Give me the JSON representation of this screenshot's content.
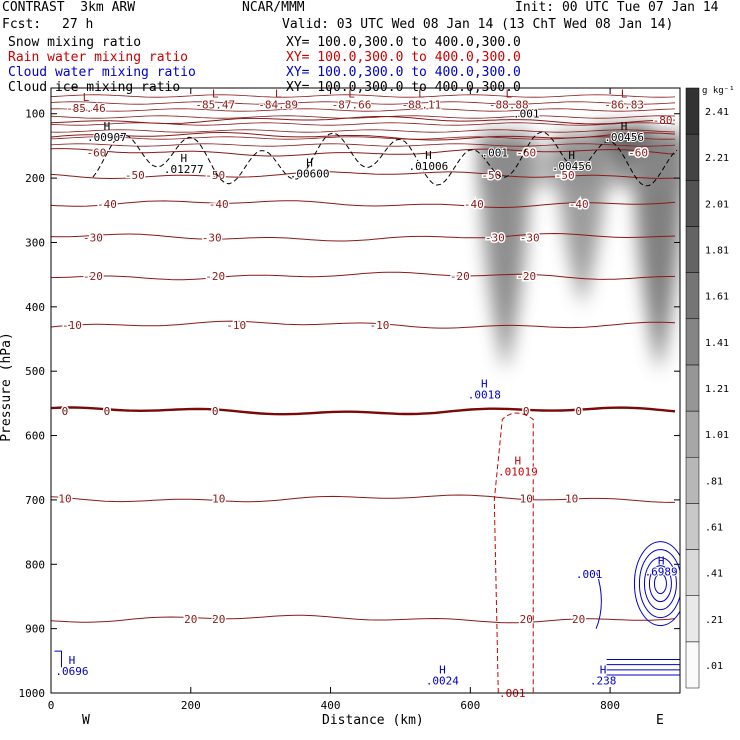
{
  "header": {
    "project": "CONTRAST  3km ARW",
    "org": "NCAR/MMM",
    "init": "Init: 00 UTC Tue 07 Jan 14",
    "fcst_label": "Fcst:",
    "fcst_value": "27 h",
    "valid": "Valid: 03 UTC Wed 08 Jan 14 (13 ChT Wed 08 Jan 14)",
    "xy": "XY= 100.0,300.0 to 400.0,300.0"
  },
  "fields": [
    {
      "label": "Snow mixing ratio",
      "color": "#000000"
    },
    {
      "label": "Rain water mixing ratio",
      "color": "#cc0000"
    },
    {
      "label": "Cloud water mixing ratio",
      "color": "#0000cc"
    },
    {
      "label": "Cloud ice mixing ratio",
      "color": "#000000"
    }
  ],
  "chart_data": {
    "type": "heatmap",
    "xlabel": "Distance (km)",
    "ylabel": "Pressure (hPa)",
    "xlim": [
      0,
      900
    ],
    "ylim": [
      1000,
      60
    ],
    "x_ticks": [
      0,
      200,
      400,
      600,
      800
    ],
    "y_ticks": [
      100,
      200,
      300,
      400,
      500,
      600,
      700,
      800,
      900,
      1000
    ],
    "x_end_labels": {
      "left": "W",
      "right": "E"
    },
    "colorbar": {
      "unit": "g kg⁻¹",
      "levels": [
        ".01",
        ".21",
        ".41",
        ".61",
        ".81",
        "1.01",
        "1.21",
        "1.41",
        "1.61",
        "1.81",
        "2.01",
        "2.21",
        "2.41"
      ],
      "level_values": [
        0.01,
        0.21,
        0.41,
        0.61,
        0.81,
        1.01,
        1.21,
        1.41,
        1.61,
        1.81,
        2.01,
        2.21,
        2.41
      ]
    },
    "snow_shading": [
      {
        "x": 650,
        "p_top": 130,
        "p_bottom": 500,
        "peak": 1.6
      },
      {
        "x": 760,
        "p_top": 130,
        "p_bottom": 400,
        "peak": 1.4
      },
      {
        "x": 870,
        "p_top": 130,
        "p_bottom": 500,
        "peak": 1.8
      },
      {
        "x": 820,
        "p_top": 120,
        "p_bottom": 210,
        "peak": 2.2
      }
    ],
    "temperature_contours": [
      {
        "value": -80,
        "p": 110,
        "color": "#8b1a1a",
        "labels": [
          {
            "text": "-80",
            "x": 875
          }
        ]
      },
      {
        "value": -70,
        "p": 135,
        "color": "#8b1a1a",
        "labels": []
      },
      {
        "value": -60,
        "p": 160,
        "color": "#8b1a1a",
        "labels": [
          {
            "text": "-60",
            "x": 65
          },
          {
            "text": "-60",
            "x": 680
          },
          {
            "text": "-60",
            "x": 840
          }
        ]
      },
      {
        "value": -50,
        "p": 195,
        "color": "#8b1a1a",
        "labels": [
          {
            "text": "-50",
            "x": 120
          },
          {
            "text": "-50",
            "x": 235
          },
          {
            "text": "-50",
            "x": 630
          },
          {
            "text": "-50",
            "x": 735
          }
        ]
      },
      {
        "value": -40,
        "p": 240,
        "color": "#8b1a1a",
        "labels": [
          {
            "text": "-40",
            "x": 80
          },
          {
            "text": "-40",
            "x": 240
          },
          {
            "text": "-40",
            "x": 605
          },
          {
            "text": "-40",
            "x": 755
          }
        ]
      },
      {
        "value": -30,
        "p": 292,
        "color": "#8b1a1a",
        "labels": [
          {
            "text": "-30",
            "x": 60
          },
          {
            "text": "-30",
            "x": 230
          },
          {
            "text": "-30",
            "x": 635
          },
          {
            "text": "-30",
            "x": 685
          }
        ]
      },
      {
        "value": -20,
        "p": 352,
        "color": "#8b1a1a",
        "labels": [
          {
            "text": "-20",
            "x": 60
          },
          {
            "text": "-20",
            "x": 235
          },
          {
            "text": "-20",
            "x": 585
          },
          {
            "text": "-20",
            "x": 680
          }
        ]
      },
      {
        "value": -10,
        "p": 428,
        "color": "#8b1a1a",
        "labels": [
          {
            "text": "-10",
            "x": 30
          },
          {
            "text": "-10",
            "x": 265
          },
          {
            "text": "-10",
            "x": 470
          }
        ]
      },
      {
        "value": 0,
        "p": 562,
        "color": "#7a0a0a",
        "labels": [
          {
            "text": "0",
            "x": 20
          },
          {
            "text": "0",
            "x": 80
          },
          {
            "text": "0",
            "x": 235
          },
          {
            "text": "0",
            "x": 680
          },
          {
            "text": "0",
            "x": 755
          }
        ]
      },
      {
        "value": 10,
        "p": 698,
        "color": "#8b1a1a",
        "labels": [
          {
            "text": "10",
            "x": 20
          },
          {
            "text": "10",
            "x": 240
          },
          {
            "text": "10",
            "x": 680
          },
          {
            "text": "10",
            "x": 745
          }
        ]
      },
      {
        "value": 20,
        "p": 885,
        "color": "#8b1a1a",
        "labels": [
          {
            "text": "20",
            "x": 200
          },
          {
            "text": "20",
            "x": 240
          },
          {
            "text": "20",
            "x": 680
          },
          {
            "text": "20",
            "x": 755
          }
        ]
      }
    ],
    "extrema_labels": [
      {
        "kind": "L",
        "value": "-85.46",
        "x": 50,
        "p": 80,
        "color": "#8b1a1a"
      },
      {
        "kind": "L",
        "value": "-85.47",
        "x": 235,
        "p": 75,
        "color": "#8b1a1a"
      },
      {
        "kind": "L",
        "value": "-84.89",
        "x": 325,
        "p": 75,
        "color": "#8b1a1a"
      },
      {
        "kind": "L",
        "value": "-87.66",
        "x": 430,
        "p": 75,
        "color": "#8b1a1a"
      },
      {
        "kind": "L",
        "value": "-88.11",
        "x": 530,
        "p": 75,
        "color": "#8b1a1a"
      },
      {
        "kind": "L",
        "value": "-88.88",
        "x": 655,
        "p": 75,
        "color": "#8b1a1a"
      },
      {
        "kind": "L",
        "value": "-86.83",
        "x": 820,
        "p": 75,
        "color": "#8b1a1a"
      },
      {
        "kind": "H",
        "value": ".00907",
        "x": 80,
        "p": 125,
        "color": "#000000"
      },
      {
        "kind": "H",
        "value": ".01277",
        "x": 190,
        "p": 175,
        "color": "#000000"
      },
      {
        "kind": "H",
        "value": ".00600",
        "x": 370,
        "p": 182,
        "color": "#000000"
      },
      {
        "kind": "H",
        "value": ".01006",
        "x": 540,
        "p": 170,
        "color": "#000000"
      },
      {
        "kind": "H",
        "value": ".00456",
        "x": 745,
        "p": 170,
        "color": "#000000"
      },
      {
        "kind": "H",
        "value": ".00456",
        "x": 820,
        "p": 125,
        "color": "#000000"
      },
      {
        "kind": "H",
        "value": ".0018",
        "x": 620,
        "p": 525,
        "color": "#0000cc"
      },
      {
        "kind": "H",
        "value": ".01019",
        "x": 668,
        "p": 645,
        "color": "#cc0000"
      },
      {
        "kind": "H",
        "value": ".0696",
        "x": 30,
        "p": 955,
        "color": "#0000cc"
      },
      {
        "kind": "H",
        "value": ".0024",
        "x": 560,
        "p": 970,
        "color": "#0000cc"
      },
      {
        "kind": "H",
        "value": ".238",
        "x": 790,
        "p": 970,
        "color": "#0000cc"
      },
      {
        "kind": "H",
        "value": ".6989",
        "x": 873,
        "p": 800,
        "color": "#0000cc"
      }
    ],
    "point_labels": [
      {
        "text": ".001",
        "x": 680,
        "p": 100,
        "color": "#000000"
      },
      {
        "text": ".001",
        "x": 635,
        "p": 160,
        "color": "#000000"
      },
      {
        "text": ".001",
        "x": 770,
        "p": 815,
        "color": "#0000cc"
      },
      {
        "text": ".001",
        "x": 660,
        "p": 1000,
        "color": "#cc0000"
      }
    ]
  }
}
